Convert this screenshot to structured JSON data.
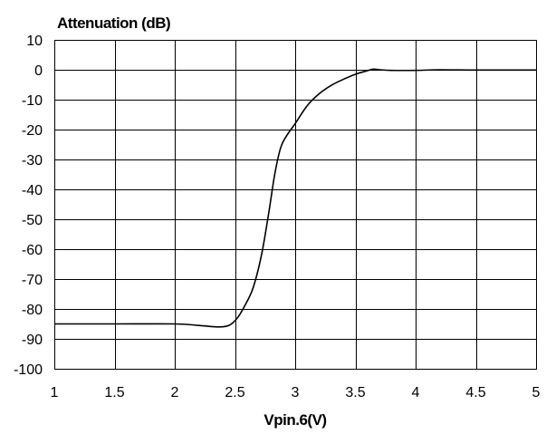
{
  "chart_data": {
    "type": "line",
    "title": "",
    "xlabel": "Vpin.6(V)",
    "ylabel": "Attenuation (dB)",
    "xlim": [
      1,
      5
    ],
    "ylim": [
      -100,
      10
    ],
    "grid": true,
    "x_ticks": [
      "1",
      "1.5",
      "2",
      "2.5",
      "3",
      "3.5",
      "4",
      "4.5",
      "5"
    ],
    "y_ticks": [
      "10",
      "0",
      "-10",
      "-20",
      "-30",
      "-40",
      "-50",
      "-60",
      "-70",
      "-80",
      "-90",
      "-100"
    ],
    "series": [
      {
        "x": [
          1.0,
          1.5,
          2.0,
          2.2,
          2.35,
          2.45,
          2.52,
          2.58,
          2.65,
          2.72,
          2.78,
          2.83,
          2.88,
          2.93,
          3.0,
          3.1,
          3.2,
          3.3,
          3.4,
          3.5,
          3.6,
          3.65,
          3.7,
          3.8,
          4.0,
          4.2,
          4.5,
          5.0
        ],
        "y": [
          -85,
          -85,
          -85,
          -85.5,
          -86,
          -85.5,
          -83,
          -79,
          -73,
          -62,
          -48,
          -35,
          -26,
          -22,
          -18,
          -12,
          -8,
          -5.2,
          -3.2,
          -1.5,
          -0.3,
          0.2,
          0,
          -0.2,
          -0.2,
          0,
          -0.1,
          -0.1
        ]
      }
    ]
  }
}
